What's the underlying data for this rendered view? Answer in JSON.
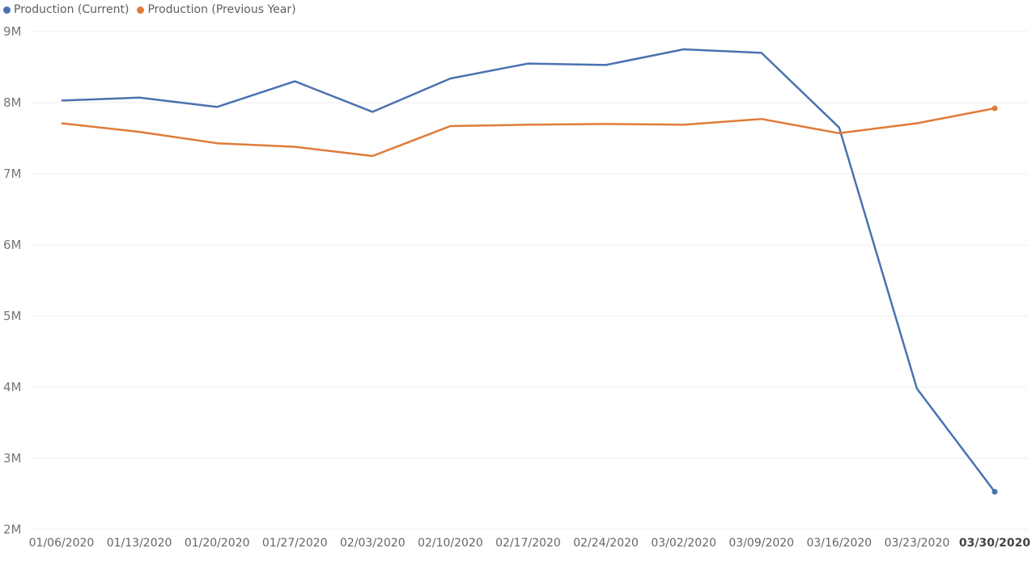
{
  "chart_data": {
    "type": "line",
    "categories": [
      "01/06/2020",
      "01/13/2020",
      "01/20/2020",
      "01/27/2020",
      "02/03/2020",
      "02/10/2020",
      "02/17/2020",
      "02/24/2020",
      "03/02/2020",
      "03/09/2020",
      "03/16/2020",
      "03/23/2020",
      "03/30/2020"
    ],
    "highlight_category": "03/30/2020",
    "series": [
      {
        "name": "Production (Current)",
        "color": "#4a72b0",
        "values": [
          8030000,
          8070000,
          7940000,
          8300000,
          7870000,
          8340000,
          8550000,
          8530000,
          8750000,
          8700000,
          7650000,
          3980000,
          2530000
        ]
      },
      {
        "name": "Production (Previous Year)",
        "color": "#e07b39",
        "values": [
          7710000,
          7590000,
          7430000,
          7380000,
          7250000,
          7670000,
          7690000,
          7700000,
          7690000,
          7770000,
          7570000,
          7710000,
          7920000
        ]
      }
    ],
    "ylim": [
      2000000,
      9000000
    ],
    "y_ticks": [
      {
        "value": 9000000,
        "label": "9M"
      },
      {
        "value": 8000000,
        "label": "8M"
      },
      {
        "value": 7000000,
        "label": "7M"
      },
      {
        "value": 6000000,
        "label": "6M"
      },
      {
        "value": 5000000,
        "label": "5M"
      },
      {
        "value": 4000000,
        "label": "4M"
      },
      {
        "value": 3000000,
        "label": "3M"
      },
      {
        "value": 2000000,
        "label": "2M"
      }
    ],
    "grid": true,
    "legend_position": "top-left",
    "title": "",
    "xlabel": "",
    "ylabel": ""
  }
}
